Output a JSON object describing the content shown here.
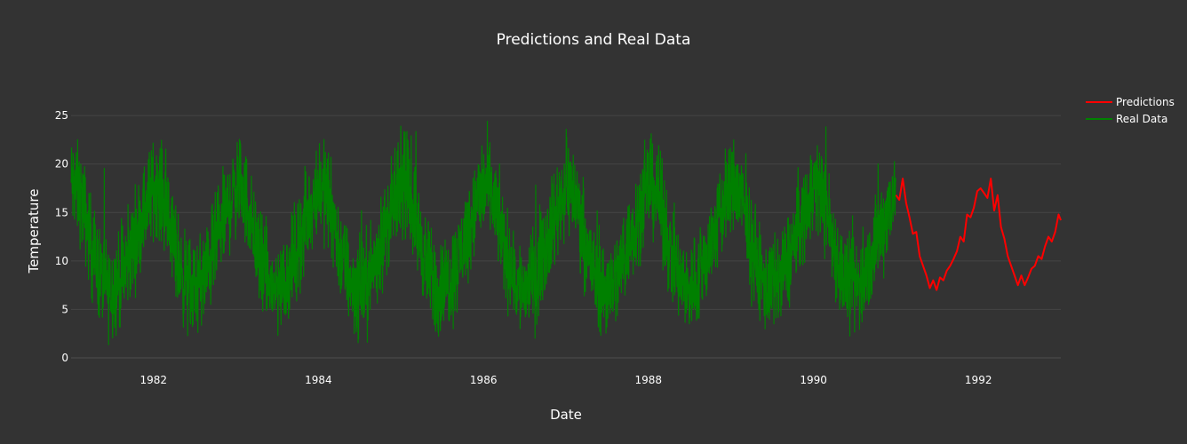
{
  "chart_data": {
    "type": "line",
    "title": "Predictions and Real Data",
    "xlabel": "Date",
    "ylabel": "Temperature",
    "xlim": [
      "1981-01-01",
      "1992-12-31"
    ],
    "ylim": [
      0,
      26.3
    ],
    "x_ticks": [
      "1982",
      "1984",
      "1986",
      "1988",
      "1990",
      "1992"
    ],
    "y_ticks": [
      0,
      5,
      10,
      15,
      20,
      25
    ],
    "grid": {
      "x": false,
      "y": true
    },
    "legend": {
      "position": "top-right outside",
      "entries": [
        "Predictions",
        "Real Data"
      ]
    },
    "colors": {
      "background": "#333333",
      "grid": "#444444",
      "text": "#ffffff",
      "Predictions": "#ff0000",
      "Real Data": "#008000"
    },
    "series": [
      {
        "name": "Predictions",
        "color": "#ff0000",
        "x": [
          "1991-01-01",
          "1991-01-16",
          "1991-01-31",
          "1991-02-15",
          "1991-03-02",
          "1991-03-17",
          "1991-04-01",
          "1991-04-16",
          "1991-05-01",
          "1991-05-16",
          "1991-05-31",
          "1991-06-15",
          "1991-06-30",
          "1991-07-15",
          "1991-07-30",
          "1991-08-14",
          "1991-08-29",
          "1991-09-13",
          "1991-09-28",
          "1991-10-13",
          "1991-10-28",
          "1991-11-12",
          "1991-11-27",
          "1991-12-12",
          "1991-12-27",
          "1992-01-11",
          "1992-01-26",
          "1992-02-10",
          "1992-02-25",
          "1992-03-11",
          "1992-03-26",
          "1992-04-10",
          "1992-04-25",
          "1992-05-10",
          "1992-05-25",
          "1992-06-09",
          "1992-06-24",
          "1992-07-09",
          "1992-07-24",
          "1992-08-08",
          "1992-08-23",
          "1992-09-07",
          "1992-09-22",
          "1992-10-07",
          "1992-10-22",
          "1992-11-06",
          "1992-11-21",
          "1992-12-06",
          "1992-12-21",
          "1992-12-31"
        ],
        "y": [
          16.8,
          16.3,
          18.5,
          16.0,
          14.5,
          12.8,
          13.0,
          10.5,
          9.5,
          8.5,
          7.2,
          8.0,
          7.0,
          8.3,
          8.0,
          9.0,
          9.5,
          10.2,
          11.0,
          12.5,
          12.0,
          14.8,
          14.5,
          15.5,
          17.2,
          17.5,
          17.0,
          16.5,
          18.5,
          15.2,
          16.8,
          13.5,
          12.3,
          10.5,
          9.5,
          8.5,
          7.5,
          8.5,
          7.5,
          8.3,
          9.2,
          9.5,
          10.5,
          10.2,
          11.5,
          12.5,
          12.0,
          13.0,
          14.8,
          14.2
        ]
      },
      {
        "name": "Real Data",
        "color": "#008000",
        "x_range": [
          "1981-01-01",
          "1990-12-31"
        ],
        "points": 3650,
        "annual_profile_start_to_end": [
          18.0,
          17.5,
          16.5,
          14.5,
          12.0,
          10.0,
          8.5,
          7.5,
          7.0,
          7.5,
          8.0,
          9.0,
          10.5,
          12.0,
          13.5,
          15.0,
          16.5,
          17.5
        ],
        "daily_spread": 3.0,
        "observed_min": 0.0,
        "observed_max": 26.3
      }
    ]
  }
}
